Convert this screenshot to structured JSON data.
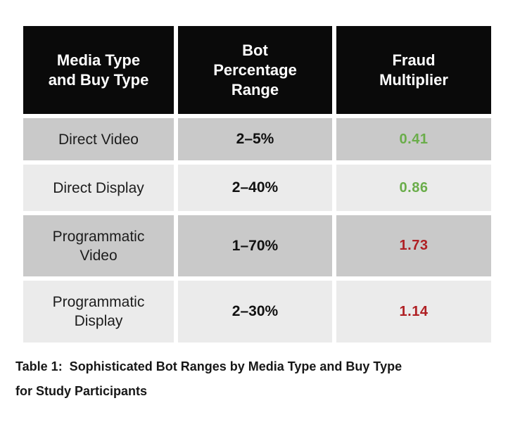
{
  "table": {
    "headers": [
      "Media Type\nand Buy Type",
      "Bot\nPercentage\nRange",
      "Fraud\nMultiplier"
    ],
    "rows": [
      {
        "label": "Direct Video",
        "range": "2–5%",
        "multiplier": "0.41",
        "status": "green"
      },
      {
        "label": "Direct Display",
        "range": "2–40%",
        "multiplier": "0.86",
        "status": "green"
      },
      {
        "label": "Programmatic\nVideo",
        "range": "1–70%",
        "multiplier": "1.73",
        "status": "red"
      },
      {
        "label": "Programmatic\nDisplay",
        "range": "2–30%",
        "multiplier": "1.14",
        "status": "red"
      }
    ]
  },
  "caption": "Table 1:  Sophisticated Bot Ranges by Media Type and Buy Type\nfor Study Participants",
  "colors": {
    "header_bg": "#0a0a0a",
    "header_text": "#ffffff",
    "row_dark": "#c9c9c9",
    "row_light": "#ebebeb",
    "multiplier_green": "#6aad4a",
    "multiplier_red": "#af1f23"
  },
  "chart_data": {
    "type": "table",
    "title": "Table 1: Sophisticated Bot Ranges by Media Type and Buy Type for Study Participants",
    "columns": [
      "Media Type and Buy Type",
      "Bot Percentage Range",
      "Fraud Multiplier"
    ],
    "rows": [
      [
        "Direct Video",
        "2–5%",
        0.41
      ],
      [
        "Direct Display",
        "2–40%",
        0.86
      ],
      [
        "Programmatic Video",
        "1–70%",
        1.73
      ],
      [
        "Programmatic Display",
        "2–30%",
        1.14
      ]
    ],
    "value_color_rule": "multiplier below 1 shown green, above 1 shown red"
  }
}
